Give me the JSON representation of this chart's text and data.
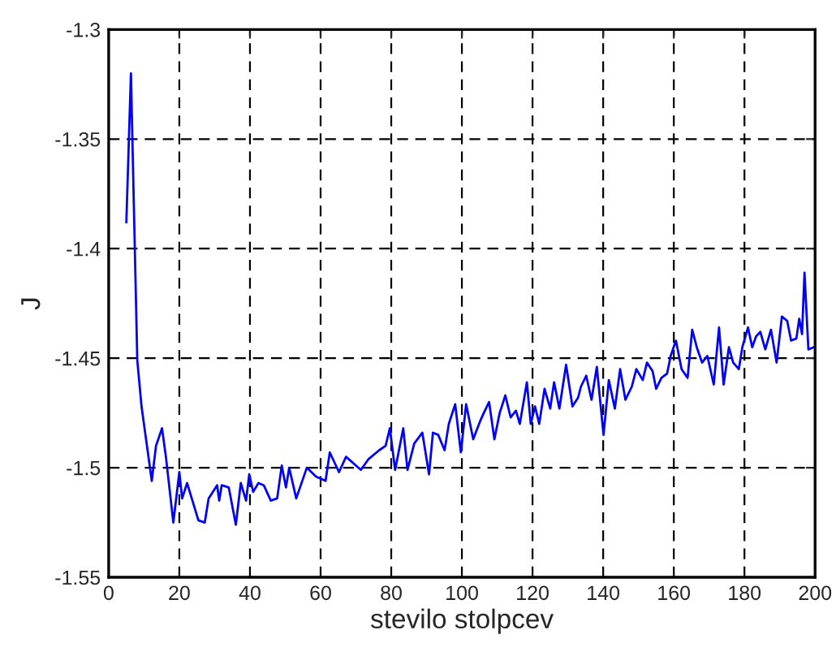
{
  "chart_data": {
    "type": "line",
    "xlabel": "stevilo stolpcev",
    "ylabel": "J",
    "xlim": [
      0,
      200
    ],
    "ylim": [
      -1.55,
      -1.3
    ],
    "xticks": [
      0,
      20,
      40,
      60,
      80,
      100,
      120,
      140,
      160,
      180,
      200
    ],
    "yticks": [
      -1.55,
      -1.5,
      -1.45,
      -1.4,
      -1.35,
      -1.3
    ],
    "grid": true,
    "line_style": "solid",
    "marker": "none",
    "series": [
      {
        "color": "#0000ff",
        "x": [
          5,
          6.3,
          8.1,
          9.3,
          12.2,
          13.4,
          15.1,
          16.2,
          18.3,
          20,
          20.8,
          22.2,
          25.4,
          27.2,
          28.3,
          30.7,
          31.3,
          32,
          34,
          36,
          37.4,
          38.9,
          39.8,
          40.9,
          42.4,
          43.9,
          45.9,
          47.7,
          49,
          50.2,
          51.1,
          53.1,
          56.1,
          58.7,
          61.4,
          62.6,
          65.2,
          67.2,
          71.4,
          73.6,
          76.6,
          78.4,
          79.6,
          81.1,
          83.4,
          84.6,
          86.5,
          88.8,
          90.7,
          91.8,
          93.3,
          95.1,
          96.3,
          98.1,
          99.7,
          101.2,
          103.2,
          105.1,
          106.2,
          107.7,
          109.2,
          110.7,
          112.3,
          113.8,
          115.3,
          116.4,
          118.4,
          119.5,
          120.7,
          121.9,
          123.4,
          125,
          126.1,
          127.6,
          129.5,
          131.3,
          132.9,
          133.7,
          135.2,
          136.7,
          138.2,
          140.1,
          141.6,
          143.3,
          144.8,
          146.3,
          148.1,
          149.4,
          151.2,
          152.4,
          154,
          155,
          156.5,
          158.1,
          159.1,
          160.6,
          162.2,
          163.9,
          165.2,
          166.5,
          168,
          169.5,
          171.3,
          172.8,
          174.1,
          175.6,
          176.8,
          178.4,
          179.4,
          181,
          182.2,
          183.3,
          184.5,
          185.9,
          187.5,
          189.1,
          190.6,
          192.1,
          193.2,
          194.7,
          195.5,
          196.3,
          197,
          198.1,
          199.6
        ],
        "values": [
          -1.388,
          -1.32,
          -1.451,
          -1.472,
          -1.506,
          -1.49,
          -1.482,
          -1.495,
          -1.525,
          -1.502,
          -1.514,
          -1.507,
          -1.524,
          -1.525,
          -1.514,
          -1.508,
          -1.515,
          -1.508,
          -1.509,
          -1.526,
          -1.507,
          -1.515,
          -1.503,
          -1.511,
          -1.507,
          -1.508,
          -1.515,
          -1.514,
          -1.499,
          -1.509,
          -1.5,
          -1.514,
          -1.5,
          -1.504,
          -1.506,
          -1.493,
          -1.502,
          -1.495,
          -1.501,
          -1.496,
          -1.492,
          -1.49,
          -1.482,
          -1.501,
          -1.482,
          -1.501,
          -1.489,
          -1.484,
          -1.503,
          -1.484,
          -1.485,
          -1.492,
          -1.48,
          -1.471,
          -1.493,
          -1.471,
          -1.487,
          -1.479,
          -1.475,
          -1.47,
          -1.487,
          -1.475,
          -1.467,
          -1.477,
          -1.474,
          -1.48,
          -1.461,
          -1.48,
          -1.472,
          -1.48,
          -1.464,
          -1.473,
          -1.461,
          -1.473,
          -1.453,
          -1.472,
          -1.468,
          -1.463,
          -1.458,
          -1.469,
          -1.454,
          -1.485,
          -1.46,
          -1.473,
          -1.455,
          -1.469,
          -1.463,
          -1.455,
          -1.46,
          -1.452,
          -1.456,
          -1.464,
          -1.459,
          -1.457,
          -1.449,
          -1.442,
          -1.455,
          -1.459,
          -1.437,
          -1.445,
          -1.452,
          -1.449,
          -1.462,
          -1.436,
          -1.462,
          -1.445,
          -1.452,
          -1.455,
          -1.445,
          -1.436,
          -1.445,
          -1.44,
          -1.438,
          -1.446,
          -1.437,
          -1.452,
          -1.431,
          -1.433,
          -1.442,
          -1.441,
          -1.432,
          -1.439,
          -1.411,
          -1.446,
          -1.445
        ]
      }
    ]
  }
}
